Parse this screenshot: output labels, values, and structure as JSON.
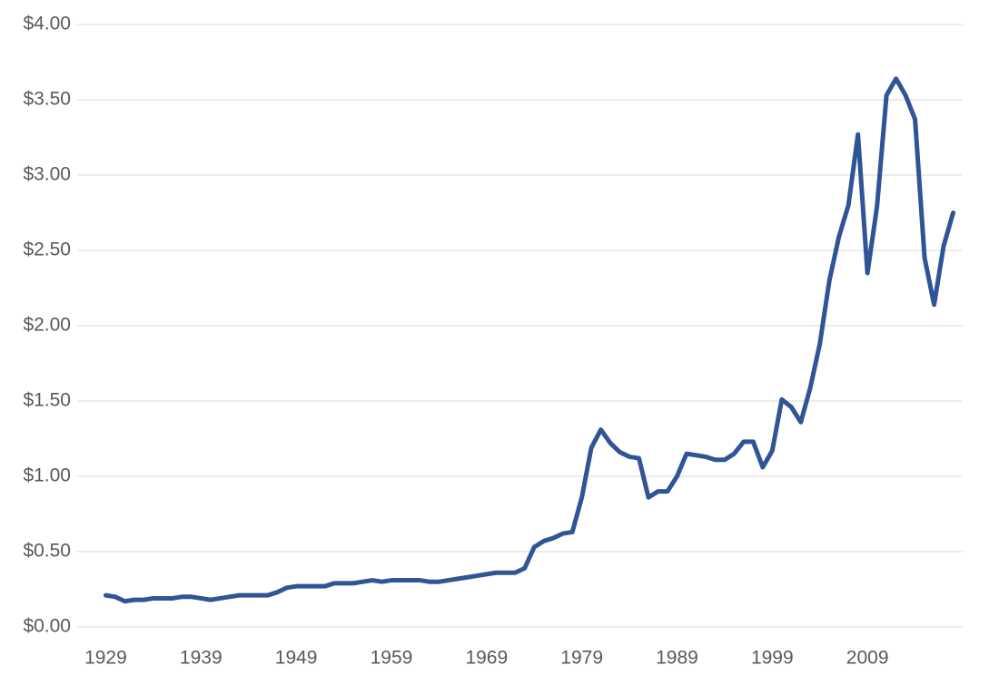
{
  "chart_data": {
    "type": "line",
    "x": [
      1929,
      1930,
      1931,
      1932,
      1933,
      1934,
      1935,
      1936,
      1937,
      1938,
      1939,
      1940,
      1941,
      1942,
      1943,
      1944,
      1945,
      1946,
      1947,
      1948,
      1949,
      1950,
      1951,
      1952,
      1953,
      1954,
      1955,
      1956,
      1957,
      1958,
      1959,
      1960,
      1961,
      1962,
      1963,
      1964,
      1965,
      1966,
      1967,
      1968,
      1969,
      1970,
      1971,
      1972,
      1973,
      1974,
      1975,
      1976,
      1977,
      1978,
      1979,
      1980,
      1981,
      1982,
      1983,
      1984,
      1985,
      1986,
      1987,
      1988,
      1989,
      1990,
      1991,
      1992,
      1993,
      1994,
      1995,
      1996,
      1997,
      1998,
      1999,
      2000,
      2001,
      2002,
      2003,
      2004,
      2005,
      2006,
      2007,
      2008,
      2009,
      2010,
      2011,
      2012,
      2013,
      2014,
      2015,
      2016,
      2017,
      2018
    ],
    "values": [
      0.21,
      0.2,
      0.17,
      0.18,
      0.18,
      0.19,
      0.19,
      0.19,
      0.2,
      0.2,
      0.19,
      0.18,
      0.19,
      0.2,
      0.21,
      0.21,
      0.21,
      0.21,
      0.23,
      0.26,
      0.27,
      0.27,
      0.27,
      0.27,
      0.29,
      0.29,
      0.29,
      0.3,
      0.31,
      0.3,
      0.31,
      0.31,
      0.31,
      0.31,
      0.3,
      0.3,
      0.31,
      0.32,
      0.33,
      0.34,
      0.35,
      0.36,
      0.36,
      0.36,
      0.39,
      0.53,
      0.57,
      0.59,
      0.62,
      0.63,
      0.86,
      1.19,
      1.31,
      1.22,
      1.16,
      1.13,
      1.12,
      0.86,
      0.9,
      0.9,
      1.0,
      1.15,
      1.14,
      1.13,
      1.11,
      1.11,
      1.15,
      1.23,
      1.23,
      1.06,
      1.17,
      1.51,
      1.46,
      1.36,
      1.59,
      1.88,
      2.3,
      2.59,
      2.8,
      3.27,
      2.35,
      2.79,
      3.53,
      3.64,
      3.53,
      3.37,
      2.45,
      2.14,
      2.53,
      2.75
    ],
    "color": "#2f5597",
    "xlim": [
      1926,
      2019
    ],
    "xticks": [
      1929,
      1939,
      1949,
      1959,
      1969,
      1979,
      1989,
      1999,
      2009
    ],
    "ylim": [
      0,
      4
    ],
    "yticks": [
      {
        "value": 0,
        "label": "$0.00"
      },
      {
        "value": 0.5,
        "label": "$0.50"
      },
      {
        "value": 1,
        "label": "$1.00"
      },
      {
        "value": 1.5,
        "label": "$1.50"
      },
      {
        "value": 2,
        "label": "$2.00"
      },
      {
        "value": 2.5,
        "label": "$2.50"
      },
      {
        "value": 3,
        "label": "$3.00"
      },
      {
        "value": 3.5,
        "label": "$3.50"
      },
      {
        "value": 4,
        "label": "$4.00"
      }
    ],
    "grid": true
  }
}
